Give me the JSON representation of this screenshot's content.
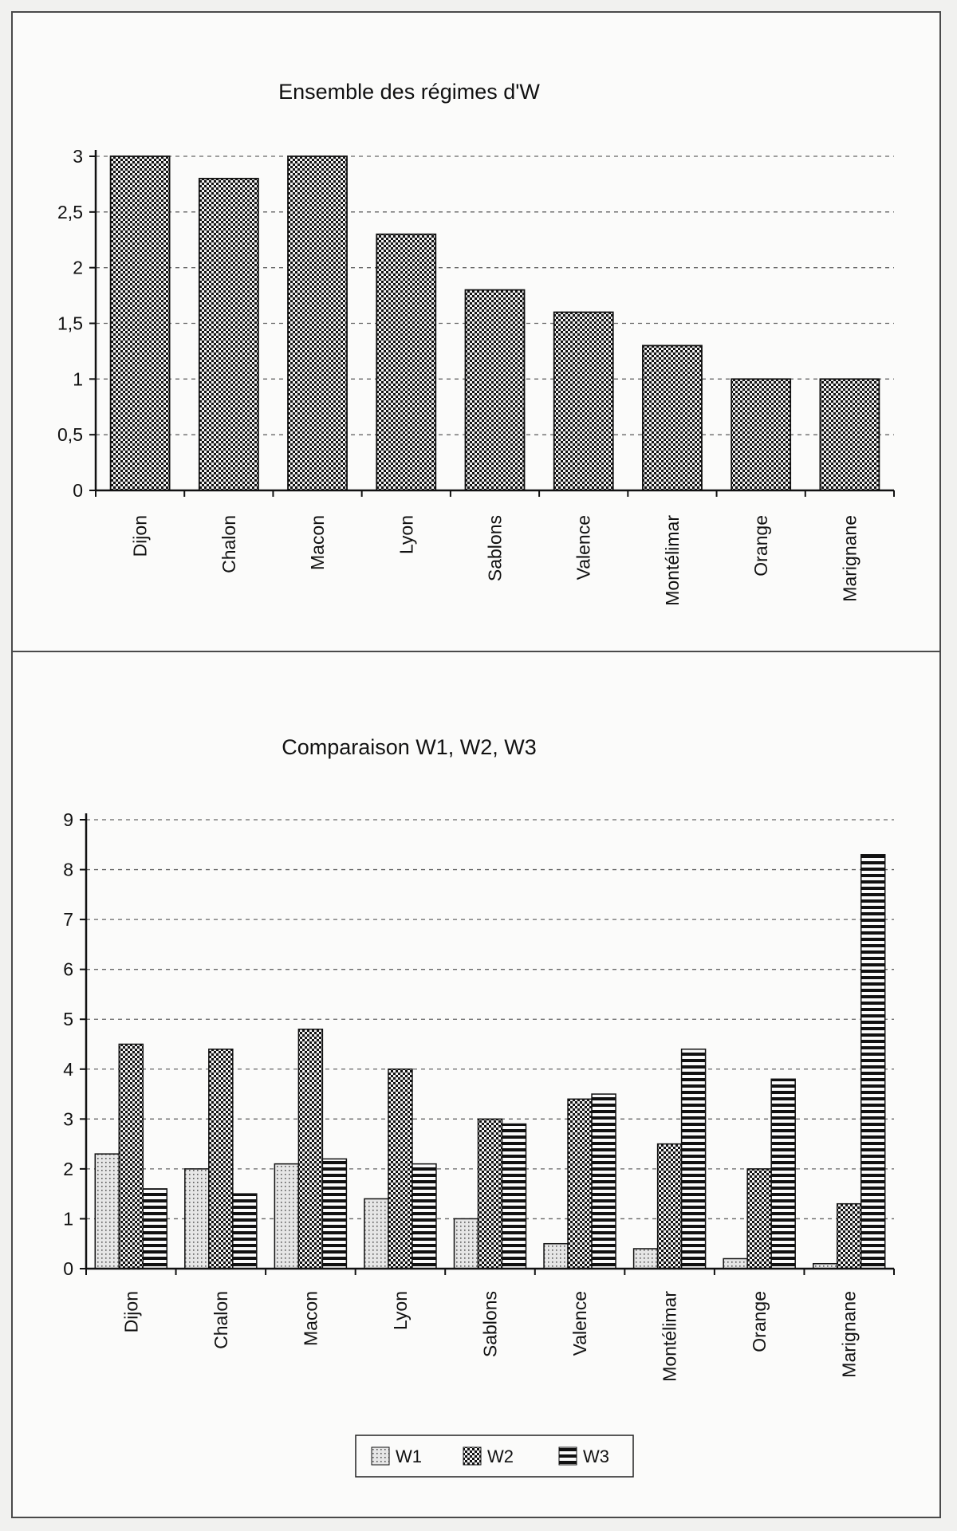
{
  "chart_data": [
    {
      "type": "bar",
      "title": "Ensemble des régimes d'W",
      "categories": [
        "Dijon",
        "Chalon",
        "Macon",
        "Lyon",
        "Sablons",
        "Valence",
        "Montélimar",
        "Orange",
        "Marignane"
      ],
      "values": [
        3.0,
        2.8,
        3.0,
        2.3,
        1.8,
        1.6,
        1.3,
        1.0,
        1.0
      ],
      "yticks": [
        "0",
        "0,5",
        "1",
        "1,5",
        "2",
        "2,5",
        "3"
      ],
      "ylim": [
        0,
        3
      ],
      "grid": "dashed horizontal",
      "legend": "none",
      "colors": {
        "bar_pattern": "checker",
        "ink": "#111111"
      }
    },
    {
      "type": "bar",
      "title": "Comparaison W1, W2, W3",
      "categories": [
        "Dijon",
        "Chalon",
        "Macon",
        "Lyon",
        "Sablons",
        "Valence",
        "Montélimar",
        "Orange",
        "Marignane"
      ],
      "series": [
        {
          "name": "W1",
          "values": [
            2.3,
            2.0,
            2.1,
            1.4,
            1.0,
            0.5,
            0.4,
            0.2,
            0.1
          ]
        },
        {
          "name": "W2",
          "values": [
            4.5,
            4.4,
            4.8,
            4.0,
            3.0,
            3.4,
            2.5,
            2.0,
            1.3
          ]
        },
        {
          "name": "W3",
          "values": [
            1.6,
            1.5,
            2.2,
            2.1,
            2.9,
            3.5,
            4.4,
            3.8,
            8.3
          ]
        }
      ],
      "yticks": [
        "0",
        "1",
        "2",
        "3",
        "4",
        "5",
        "6",
        "7",
        "8",
        "9"
      ],
      "ylim": [
        0,
        9
      ],
      "grid": "dashed horizontal",
      "legend": "bottom",
      "colors": {
        "W1": "light dotted",
        "W2": "dark checker",
        "W3": "horizontal stripes"
      }
    }
  ]
}
